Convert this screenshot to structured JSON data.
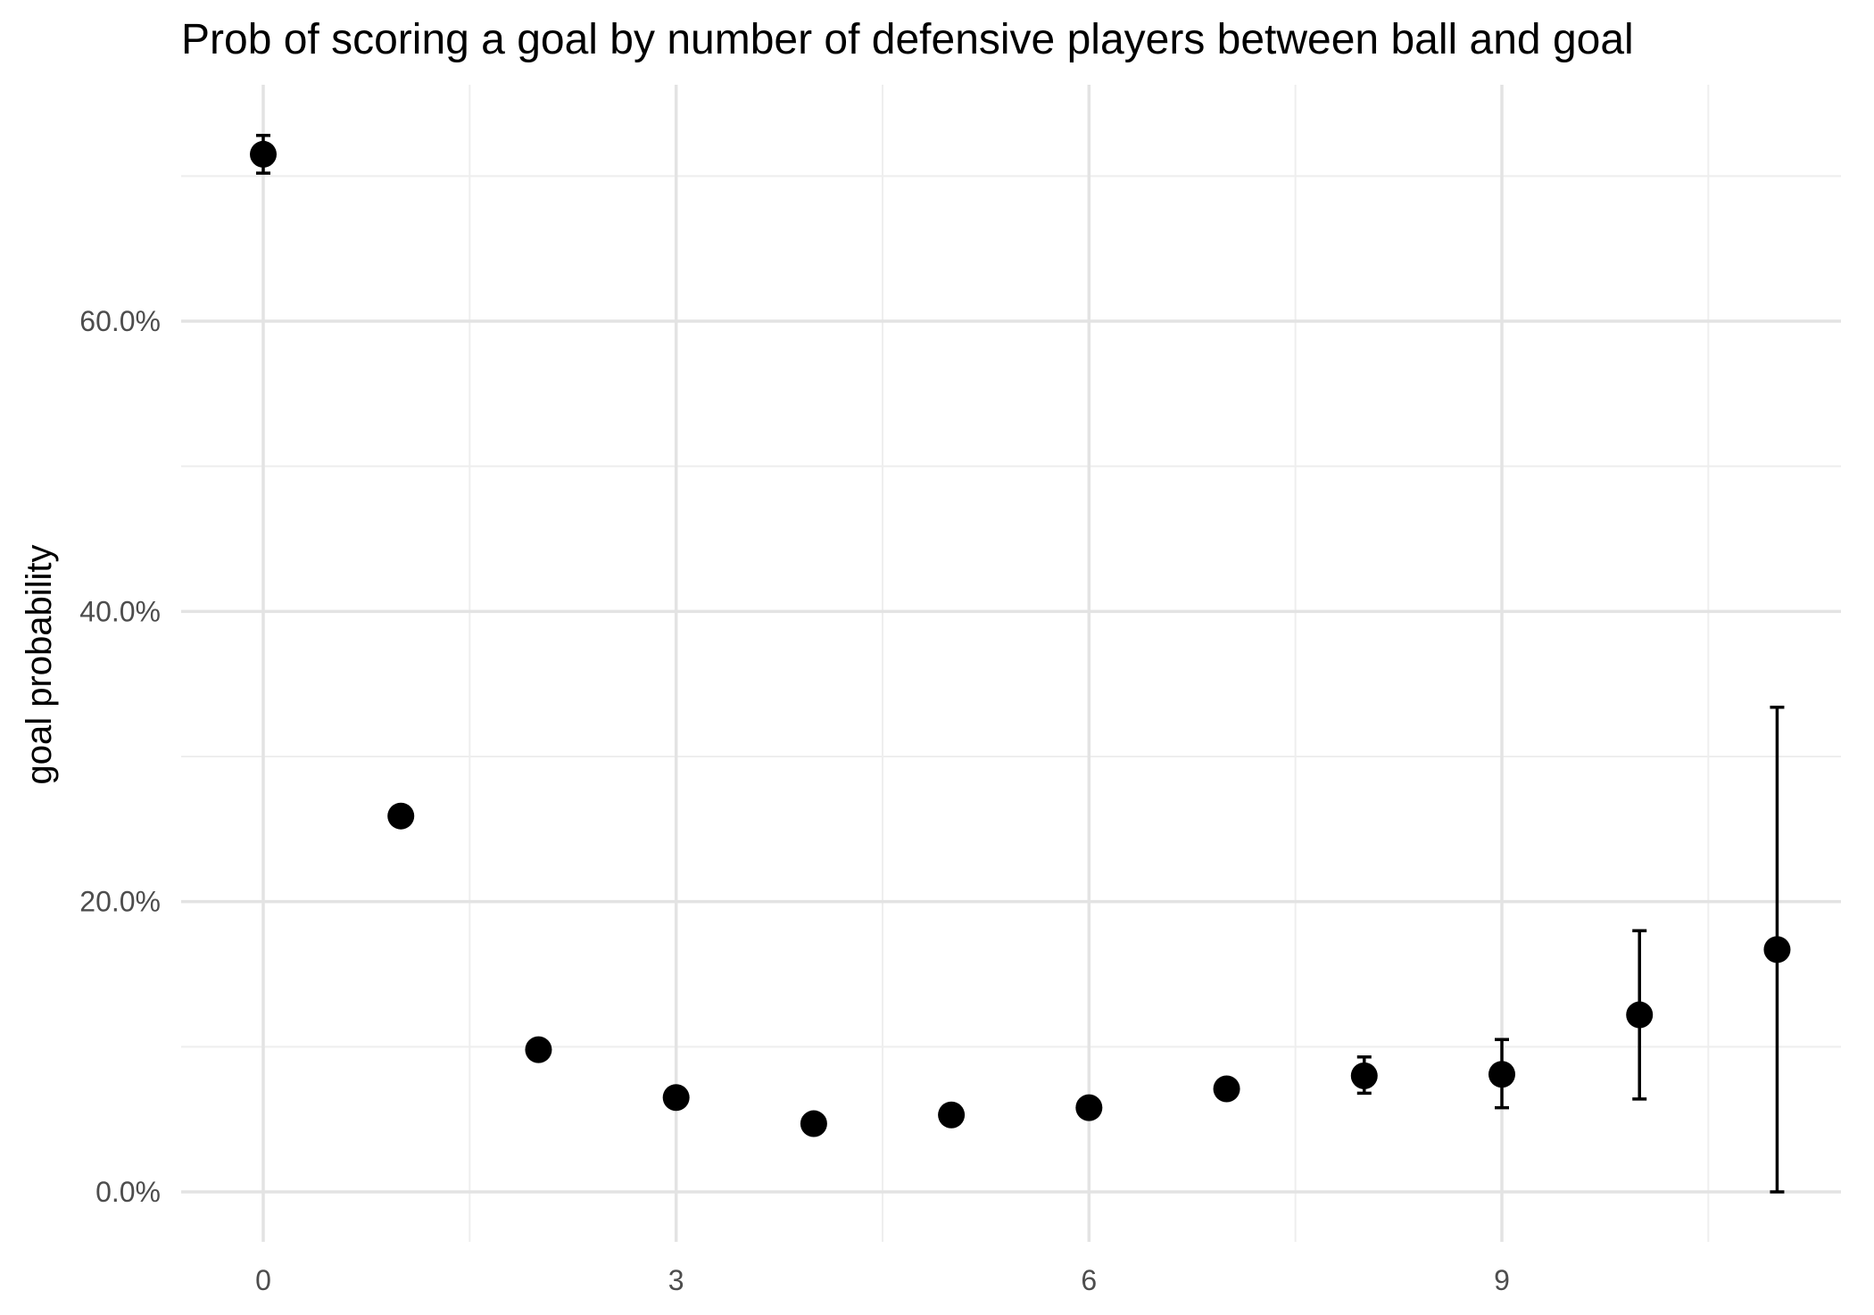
{
  "chart_data": {
    "type": "scatter",
    "title": "Prob of scoring a goal by number of defensive players between ball and goal",
    "xlabel": "",
    "ylabel": "goal probability",
    "xlim": [
      -0.6,
      11.4
    ],
    "ylim": [
      -0.035,
      0.76
    ],
    "x_ticks": [
      0,
      3,
      6,
      9
    ],
    "x_tick_labels": [
      "0",
      "3",
      "6",
      "9"
    ],
    "x_minor_ticks": [
      1.5,
      4.5,
      7.5,
      10.5
    ],
    "y_ticks": [
      0,
      0.2,
      0.4,
      0.6
    ],
    "y_tick_labels": [
      "0.0%",
      "20.0%",
      "40.0%",
      "60.0%"
    ],
    "y_minor_ticks": [
      0.1,
      0.3,
      0.5,
      0.7
    ],
    "grid": true,
    "legend": "none",
    "point_color": "#000000",
    "points": [
      {
        "x": 0,
        "y": 0.715,
        "ymin": 0.702,
        "ymax": 0.728
      },
      {
        "x": 1,
        "y": 0.259,
        "ymin": 0.256,
        "ymax": 0.262
      },
      {
        "x": 2,
        "y": 0.098,
        "ymin": 0.097,
        "ymax": 0.099
      },
      {
        "x": 3,
        "y": 0.065,
        "ymin": 0.064,
        "ymax": 0.066
      },
      {
        "x": 4,
        "y": 0.047,
        "ymin": 0.046,
        "ymax": 0.048
      },
      {
        "x": 5,
        "y": 0.053,
        "ymin": 0.052,
        "ymax": 0.054
      },
      {
        "x": 6,
        "y": 0.058,
        "ymin": 0.057,
        "ymax": 0.059
      },
      {
        "x": 7,
        "y": 0.071,
        "ymin": 0.069,
        "ymax": 0.073
      },
      {
        "x": 8,
        "y": 0.08,
        "ymin": 0.068,
        "ymax": 0.093
      },
      {
        "x": 9,
        "y": 0.081,
        "ymin": 0.058,
        "ymax": 0.105
      },
      {
        "x": 10,
        "y": 0.122,
        "ymin": 0.064,
        "ymax": 0.18
      },
      {
        "x": 11,
        "y": 0.167,
        "ymin": 0.0,
        "ymax": 0.334
      }
    ]
  }
}
